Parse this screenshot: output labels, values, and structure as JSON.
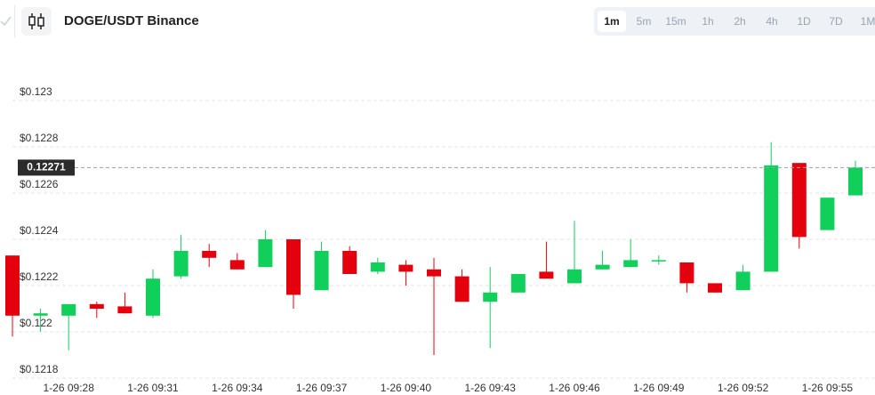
{
  "header": {
    "title": "DOGE/USDT Binance"
  },
  "toolbar": {
    "intervals": [
      "1m",
      "5m",
      "15m",
      "1h",
      "2h",
      "4h",
      "1D",
      "7D",
      "1M"
    ],
    "active": 0
  },
  "chart_data": {
    "type": "candlestick",
    "categories": [
      null,
      null,
      "1-26 09:28",
      null,
      null,
      "1-26 09:31",
      null,
      null,
      "1-26 09:34",
      null,
      null,
      "1-26 09:37",
      null,
      null,
      "1-26 09:40",
      null,
      null,
      "1-26 09:43",
      null,
      null,
      "1-26 09:46",
      null,
      null,
      "1-26 09:49",
      null,
      null,
      "1-26 09:52",
      null,
      null,
      "1-26 09:55",
      null
    ],
    "open": [
      0.12233,
      0.12207,
      0.12207,
      0.12212,
      0.12211,
      0.12207,
      0.12224,
      0.12235,
      0.12231,
      0.12228,
      0.1224,
      0.12218,
      0.12235,
      0.12226,
      0.12229,
      0.12227,
      0.12224,
      0.12213,
      0.12217,
      0.12226,
      0.12221,
      0.12227,
      0.12228,
      0.12231,
      0.1223,
      0.12221,
      0.12218,
      0.12226,
      0.12273,
      0.12244,
      0.12259
    ],
    "high": [
      0.12233,
      0.1221,
      0.12212,
      0.12213,
      0.12217,
      0.12227,
      0.12242,
      0.12238,
      0.12234,
      0.12244,
      0.1224,
      0.12239,
      0.12237,
      0.12232,
      0.12231,
      0.12232,
      0.12227,
      0.12228,
      0.12225,
      0.12239,
      0.12248,
      0.12235,
      0.1224,
      0.12233,
      0.1223,
      0.12221,
      0.12229,
      0.12282,
      0.12273,
      0.12258,
      0.12274
    ],
    "low": [
      0.12198,
      0.122,
      0.12192,
      0.12206,
      0.12208,
      0.12206,
      0.12223,
      0.12228,
      0.12227,
      0.12228,
      0.1221,
      0.12218,
      0.12225,
      0.12225,
      0.1222,
      0.1219,
      0.12213,
      0.12193,
      0.12217,
      0.12223,
      0.12221,
      0.12227,
      0.12228,
      0.12229,
      0.12217,
      0.12217,
      0.12218,
      0.12226,
      0.12236,
      0.12244,
      0.12259
    ],
    "close": [
      0.12207,
      0.12208,
      0.12212,
      0.1221,
      0.12208,
      0.12223,
      0.12235,
      0.12232,
      0.12227,
      0.1224,
      0.12216,
      0.12235,
      0.12225,
      0.1223,
      0.12226,
      0.12224,
      0.12213,
      0.12217,
      0.12225,
      0.12223,
      0.12227,
      0.12229,
      0.12231,
      0.12231,
      0.12221,
      0.12217,
      0.12226,
      0.12272,
      0.12241,
      0.12258,
      0.12271
    ],
    "up_color": "#10cf5a",
    "down_color": "#e5000d",
    "ylim": [
      0.1218,
      0.1232
    ],
    "yticks": [
      {
        "value": 0.1218,
        "label": "$0.1218"
      },
      {
        "value": 0.122,
        "label": "$0.122"
      },
      {
        "value": 0.1222,
        "label": "$0.1222"
      },
      {
        "value": 0.1224,
        "label": "$0.1224"
      },
      {
        "value": 0.1226,
        "label": "$0.1226"
      },
      {
        "value": 0.1228,
        "label": "$0.1228"
      },
      {
        "value": 0.123,
        "label": "$0.123"
      }
    ],
    "grid": true,
    "last_price": 0.12271
  }
}
